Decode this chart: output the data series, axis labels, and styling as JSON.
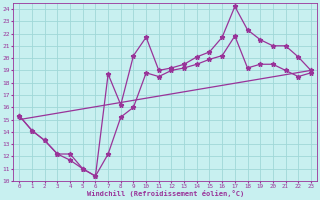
{
  "xlabel": "Windchill (Refroidissement éolien,°C)",
  "background_color": "#c8f0f0",
  "grid_color": "#a0d8d8",
  "line_color": "#993399",
  "xlim": [
    -0.5,
    23.5
  ],
  "ylim": [
    10,
    24.5
  ],
  "xticks": [
    0,
    1,
    2,
    3,
    4,
    5,
    6,
    7,
    8,
    9,
    10,
    11,
    12,
    13,
    14,
    15,
    16,
    17,
    18,
    19,
    20,
    21,
    22,
    23
  ],
  "yticks": [
    10,
    11,
    12,
    13,
    14,
    15,
    16,
    17,
    18,
    19,
    20,
    21,
    22,
    23,
    24
  ],
  "line1_x": [
    0,
    1,
    2,
    3,
    4,
    5,
    6,
    7,
    8,
    9,
    10,
    11,
    12,
    13,
    14,
    15,
    16,
    17,
    18,
    19,
    20,
    21,
    22,
    23
  ],
  "line1_y": [
    15.3,
    14.1,
    13.3,
    12.2,
    12.2,
    11.0,
    10.4,
    18.7,
    16.2,
    20.2,
    21.7,
    19.0,
    19.2,
    19.5,
    20.1,
    20.5,
    21.7,
    24.2,
    22.3,
    21.5,
    21.0,
    21.0,
    20.1,
    19.0
  ],
  "line2_x": [
    0,
    1,
    2,
    3,
    4,
    5,
    6,
    7,
    8,
    9,
    10,
    11,
    12,
    13,
    14,
    15,
    16,
    17,
    18,
    19,
    20,
    21,
    22,
    23
  ],
  "line2_y": [
    15.3,
    14.1,
    13.3,
    12.2,
    11.7,
    11.0,
    10.4,
    12.2,
    15.2,
    16.0,
    18.8,
    18.5,
    19.0,
    19.2,
    19.5,
    19.9,
    20.2,
    21.8,
    19.2,
    19.5,
    19.5,
    19.0,
    18.5,
    18.8
  ],
  "line3_x": [
    0,
    23
  ],
  "line3_y": [
    15.0,
    19.0
  ],
  "marker": "*",
  "markersize": 3.5,
  "linewidth": 0.9
}
